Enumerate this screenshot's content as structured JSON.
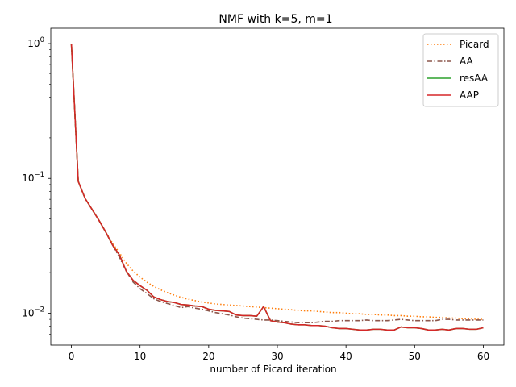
{
  "chart_data": {
    "type": "line",
    "title": "NMF with k=5, m=1",
    "xlabel": "number of Picard iteration",
    "ylabel": "",
    "yscale": "log",
    "xlim": [
      -3,
      63
    ],
    "ylim": [
      0.0058,
      1.3
    ],
    "xticks": [
      0,
      10,
      20,
      30,
      40,
      50,
      60
    ],
    "yticks": [
      {
        "value": 0.01,
        "base": "10",
        "exp": "−2"
      },
      {
        "value": 0.1,
        "base": "10",
        "exp": "−1"
      },
      {
        "value": 1,
        "base": "10",
        "exp": "0"
      }
    ],
    "legend_position": "upper right",
    "series": [
      {
        "name": "Picard",
        "color": "#ff7f0e",
        "style": "dotted",
        "x": [
          0,
          1,
          2,
          3,
          4,
          5,
          6,
          7,
          8,
          9,
          10,
          11,
          12,
          13,
          14,
          15,
          16,
          17,
          18,
          19,
          20,
          21,
          22,
          23,
          24,
          25,
          26,
          27,
          28,
          29,
          30,
          31,
          32,
          33,
          34,
          35,
          36,
          37,
          38,
          39,
          40,
          41,
          42,
          43,
          44,
          45,
          46,
          47,
          48,
          49,
          50,
          51,
          52,
          53,
          54,
          55,
          56,
          57,
          58,
          59,
          60
        ],
        "y": [
          1.0,
          0.095,
          0.071,
          0.059,
          0.049,
          0.04,
          0.033,
          0.028,
          0.0235,
          0.0205,
          0.0185,
          0.017,
          0.0158,
          0.0149,
          0.0142,
          0.0136,
          0.0131,
          0.0127,
          0.0124,
          0.0121,
          0.0119,
          0.0117,
          0.0116,
          0.0115,
          0.0114,
          0.0113,
          0.0112,
          0.0111,
          0.011,
          0.0109,
          0.0108,
          0.0107,
          0.0106,
          0.0105,
          0.0104,
          0.0104,
          0.0103,
          0.0102,
          0.0101,
          0.0101,
          0.01,
          0.0099,
          0.0099,
          0.0098,
          0.0098,
          0.0097,
          0.0097,
          0.0096,
          0.0096,
          0.0095,
          0.0095,
          0.0094,
          0.0094,
          0.0093,
          0.0093,
          0.0092,
          0.0092,
          0.0091,
          0.0091,
          0.009,
          0.009
        ]
      },
      {
        "name": "AA",
        "color": "#8c564b",
        "style": "dashdot",
        "x": [
          0,
          1,
          2,
          3,
          4,
          5,
          6,
          7,
          8,
          9,
          10,
          11,
          12,
          13,
          14,
          15,
          16,
          17,
          18,
          19,
          20,
          21,
          22,
          23,
          24,
          25,
          26,
          27,
          28,
          29,
          30,
          31,
          32,
          33,
          34,
          35,
          36,
          37,
          38,
          39,
          40,
          41,
          42,
          43,
          44,
          45,
          46,
          47,
          48,
          49,
          50,
          51,
          52,
          53,
          54,
          55,
          56,
          57,
          58,
          59,
          60
        ],
        "y": [
          1.0,
          0.095,
          0.071,
          0.059,
          0.049,
          0.04,
          0.032,
          0.026,
          0.0205,
          0.017,
          0.0152,
          0.014,
          0.0128,
          0.0122,
          0.0118,
          0.0114,
          0.011,
          0.0112,
          0.0109,
          0.0107,
          0.0104,
          0.0101,
          0.0099,
          0.0097,
          0.0094,
          0.0092,
          0.0091,
          0.009,
          0.0089,
          0.0089,
          0.0088,
          0.0087,
          0.0086,
          0.0085,
          0.0085,
          0.0085,
          0.0086,
          0.0087,
          0.0087,
          0.0088,
          0.0088,
          0.0088,
          0.0088,
          0.0089,
          0.0088,
          0.0088,
          0.0088,
          0.0089,
          0.009,
          0.0089,
          0.0088,
          0.0088,
          0.0088,
          0.0088,
          0.009,
          0.009,
          0.0089,
          0.0089,
          0.0089,
          0.0089,
          0.0089
        ]
      },
      {
        "name": "resAA",
        "color": "#2ca02c",
        "style": "solid",
        "x": [
          0,
          1,
          2,
          3,
          4,
          5,
          6,
          7,
          8,
          9,
          10,
          11,
          12,
          13,
          14,
          15,
          16,
          17,
          18,
          19,
          20,
          21,
          22,
          23,
          24,
          25,
          26,
          27,
          28,
          29,
          30,
          31,
          32,
          33,
          34,
          35,
          36,
          37,
          38,
          39,
          40,
          41,
          42,
          43,
          44,
          45,
          46,
          47,
          48,
          49,
          50,
          51,
          52,
          53,
          54,
          55,
          56,
          57,
          58,
          59,
          60
        ],
        "y": [
          1.0,
          0.095,
          0.071,
          0.059,
          0.049,
          0.04,
          0.032,
          0.027,
          0.0205,
          0.0175,
          0.016,
          0.0148,
          0.0132,
          0.0126,
          0.0122,
          0.012,
          0.0116,
          0.0115,
          0.0113,
          0.0112,
          0.0107,
          0.0105,
          0.0104,
          0.0103,
          0.0097,
          0.0096,
          0.0096,
          0.0095,
          0.0112,
          0.0088,
          0.0086,
          0.0085,
          0.0083,
          0.0082,
          0.0082,
          0.0081,
          0.0081,
          0.008,
          0.0078,
          0.0077,
          0.0077,
          0.0076,
          0.0075,
          0.0075,
          0.0076,
          0.0076,
          0.0075,
          0.0075,
          0.0079,
          0.0078,
          0.0078,
          0.0077,
          0.0075,
          0.0075,
          0.0076,
          0.0075,
          0.0077,
          0.0077,
          0.0076,
          0.0076,
          0.0078
        ]
      },
      {
        "name": "AAP",
        "color": "#d62728",
        "style": "solid",
        "x": [
          0,
          1,
          2,
          3,
          4,
          5,
          6,
          7,
          8,
          9,
          10,
          11,
          12,
          13,
          14,
          15,
          16,
          17,
          18,
          19,
          20,
          21,
          22,
          23,
          24,
          25,
          26,
          27,
          28,
          29,
          30,
          31,
          32,
          33,
          34,
          35,
          36,
          37,
          38,
          39,
          40,
          41,
          42,
          43,
          44,
          45,
          46,
          47,
          48,
          49,
          50,
          51,
          52,
          53,
          54,
          55,
          56,
          57,
          58,
          59,
          60
        ],
        "y": [
          1.0,
          0.095,
          0.071,
          0.059,
          0.049,
          0.04,
          0.032,
          0.027,
          0.0205,
          0.0175,
          0.016,
          0.0148,
          0.0132,
          0.0126,
          0.0122,
          0.012,
          0.0116,
          0.0115,
          0.0113,
          0.0112,
          0.0107,
          0.0105,
          0.0104,
          0.0103,
          0.0097,
          0.0096,
          0.0096,
          0.0095,
          0.0112,
          0.0088,
          0.0086,
          0.0085,
          0.0083,
          0.0082,
          0.0082,
          0.0081,
          0.0081,
          0.008,
          0.0078,
          0.0077,
          0.0077,
          0.0076,
          0.0075,
          0.0075,
          0.0076,
          0.0076,
          0.0075,
          0.0075,
          0.0079,
          0.0078,
          0.0078,
          0.0077,
          0.0075,
          0.0075,
          0.0076,
          0.0075,
          0.0077,
          0.0077,
          0.0076,
          0.0076,
          0.0078
        ]
      }
    ]
  }
}
